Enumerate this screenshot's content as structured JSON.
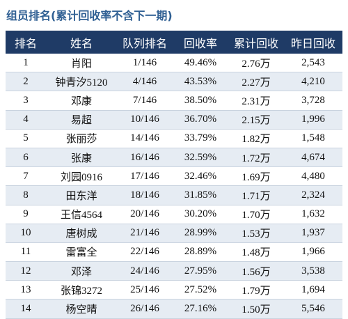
{
  "title": "组员排名(累计回收率不含下一期)",
  "table": {
    "headers": [
      "排名",
      "姓名",
      "队列排名",
      "回收率",
      "累计回收",
      "昨日回收"
    ],
    "rows": [
      [
        "1",
        "肖阳",
        "1/146",
        "49.46%",
        "2.76万",
        "2,543"
      ],
      [
        "2",
        "钟青汐5120",
        "4/146",
        "43.53%",
        "2.27万",
        "4,210"
      ],
      [
        "3",
        "邓康",
        "7/146",
        "38.50%",
        "2.31万",
        "3,728"
      ],
      [
        "4",
        "易超",
        "10/146",
        "36.70%",
        "2.15万",
        "1,996"
      ],
      [
        "5",
        "张丽莎",
        "14/146",
        "33.79%",
        "1.82万",
        "1,548"
      ],
      [
        "6",
        "张康",
        "16/146",
        "32.59%",
        "1.72万",
        "4,674"
      ],
      [
        "7",
        "刘园0916",
        "17/146",
        "32.46%",
        "1.69万",
        "4,480"
      ],
      [
        "8",
        "田东洋",
        "18/146",
        "31.85%",
        "1.71万",
        "2,324"
      ],
      [
        "9",
        "王信4564",
        "20/146",
        "30.20%",
        "1.70万",
        "1,632"
      ],
      [
        "10",
        "唐树成",
        "21/146",
        "28.99%",
        "1.53万",
        "1,937"
      ],
      [
        "11",
        "雷富全",
        "22/146",
        "28.89%",
        "1.48万",
        "1,966"
      ],
      [
        "12",
        "邓泽",
        "24/146",
        "27.95%",
        "1.56万",
        "3,538"
      ],
      [
        "13",
        "张锦3272",
        "25/146",
        "27.52%",
        "1.79万",
        "1,694"
      ],
      [
        "14",
        "杨空晴",
        "26/146",
        "27.16%",
        "1.50万",
        "5,546"
      ]
    ]
  }
}
